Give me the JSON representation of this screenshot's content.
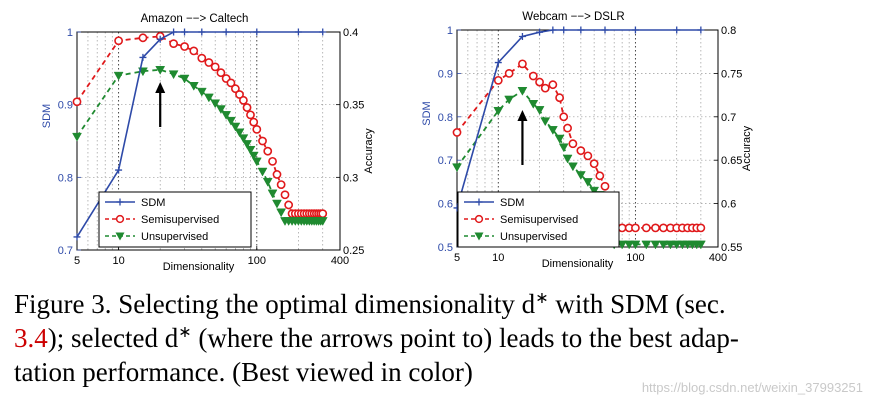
{
  "chart_data": [
    {
      "type": "line",
      "title": "Amazon −−> Caltech",
      "xlabel": "Dimensionality",
      "ylabel_left": "SDM",
      "ylabel_right": "Accuracy",
      "xscale": "log",
      "xlim": [
        5,
        400
      ],
      "x_ticks": [
        "5",
        "10",
        "100",
        "400"
      ],
      "ylim_left": [
        0.7,
        1.0
      ],
      "y_ticks_left": [
        "0.7",
        "0.8",
        "0.9",
        "1"
      ],
      "ylim_right": [
        0.25,
        0.4
      ],
      "y_ticks_right": [
        "0.25",
        "0.3",
        "0.35",
        "0.4"
      ],
      "grid": true,
      "legend_position": "bottom-left",
      "selected_x": 20,
      "series": [
        {
          "name": "SDM",
          "axis": "left",
          "color": "#2e4aa8",
          "marker": "plus",
          "x": [
            5,
            10,
            15,
            20,
            25,
            30,
            40,
            60,
            100,
            200,
            300
          ],
          "y": [
            0.718,
            0.81,
            0.965,
            0.99,
            1.0,
            1.0,
            1.0,
            1.0,
            1.0,
            1.0,
            1.0
          ]
        },
        {
          "name": "Semisupervised",
          "axis": "right",
          "color": "#e0191b",
          "marker": "circle",
          "x": [
            5,
            10,
            15,
            20,
            25,
            30,
            35,
            40,
            45,
            50,
            55,
            60,
            65,
            70,
            75,
            80,
            85,
            90,
            95,
            100,
            110,
            120,
            130,
            140,
            150,
            160,
            170,
            180,
            190,
            200,
            210,
            220,
            230,
            240,
            250,
            260,
            270,
            280,
            290,
            300
          ],
          "y": [
            0.352,
            0.394,
            0.396,
            0.397,
            0.392,
            0.39,
            0.387,
            0.382,
            0.379,
            0.376,
            0.372,
            0.368,
            0.365,
            0.361,
            0.357,
            0.353,
            0.348,
            0.343,
            0.338,
            0.333,
            0.325,
            0.318,
            0.311,
            0.302,
            0.295,
            0.288,
            0.281,
            0.275,
            0.275,
            0.275,
            0.275,
            0.275,
            0.275,
            0.275,
            0.275,
            0.275,
            0.275,
            0.275,
            0.275,
            0.275
          ]
        },
        {
          "name": "Unsupervised",
          "axis": "right",
          "color": "#1f8a30",
          "marker": "triangle-down",
          "x": [
            5,
            10,
            15,
            20,
            25,
            30,
            35,
            40,
            45,
            50,
            55,
            60,
            65,
            70,
            75,
            80,
            85,
            90,
            95,
            100,
            110,
            120,
            130,
            140,
            150,
            160,
            170,
            180,
            190,
            200,
            210,
            220,
            230,
            240,
            250,
            260,
            270,
            280,
            290,
            300
          ],
          "y": [
            0.328,
            0.37,
            0.373,
            0.374,
            0.371,
            0.368,
            0.363,
            0.359,
            0.355,
            0.351,
            0.347,
            0.343,
            0.339,
            0.335,
            0.331,
            0.327,
            0.323,
            0.319,
            0.315,
            0.311,
            0.304,
            0.297,
            0.289,
            0.282,
            0.276,
            0.27,
            0.27,
            0.27,
            0.27,
            0.27,
            0.27,
            0.27,
            0.27,
            0.27,
            0.27,
            0.27,
            0.27,
            0.27,
            0.27,
            0.27
          ]
        }
      ]
    },
    {
      "type": "line",
      "title": "Webcam −−> DSLR",
      "xlabel": "Dimensionality",
      "ylabel_left": "SDM",
      "ylabel_right": "Accuracy",
      "xscale": "log",
      "xlim": [
        5,
        400
      ],
      "x_ticks": [
        "5",
        "10",
        "100",
        "400"
      ],
      "ylim_left": [
        0.5,
        1.0
      ],
      "y_ticks_left": [
        "0.5",
        "0.6",
        "0.7",
        "0.8",
        "0.9",
        "1"
      ],
      "ylim_right": [
        0.55,
        0.8
      ],
      "y_ticks_right": [
        "0.55",
        "0.6",
        "0.65",
        "0.7",
        "0.75",
        "0.8"
      ],
      "grid": true,
      "legend_position": "bottom-left",
      "selected_x": 15,
      "series": [
        {
          "name": "SDM",
          "axis": "left",
          "color": "#2e4aa8",
          "marker": "plus",
          "x": [
            5,
            10,
            15,
            20,
            25,
            30,
            40,
            60,
            100,
            200,
            300
          ],
          "y": [
            0.59,
            0.925,
            0.985,
            0.995,
            1.0,
            1.0,
            1.0,
            1.0,
            1.0,
            1.0,
            1.0
          ]
        },
        {
          "name": "Semisupervised",
          "axis": "right",
          "color": "#e0191b",
          "marker": "circle",
          "x": [
            5,
            10,
            12,
            15,
            18,
            20,
            22,
            25,
            28,
            30,
            32,
            35,
            40,
            45,
            50,
            55,
            60,
            70,
            80,
            90,
            100,
            120,
            140,
            160,
            180,
            200,
            220,
            240,
            260,
            280,
            300
          ],
          "y": [
            0.682,
            0.742,
            0.75,
            0.761,
            0.747,
            0.74,
            0.733,
            0.737,
            0.722,
            0.7,
            0.687,
            0.669,
            0.661,
            0.655,
            0.646,
            0.632,
            0.62,
            0.572,
            0.572,
            0.572,
            0.572,
            0.572,
            0.572,
            0.572,
            0.572,
            0.572,
            0.572,
            0.572,
            0.572,
            0.572,
            0.572
          ]
        },
        {
          "name": "Unsupervised",
          "axis": "right",
          "color": "#1f8a30",
          "marker": "triangle-down",
          "x": [
            5,
            10,
            12,
            15,
            18,
            20,
            22,
            25,
            28,
            30,
            32,
            35,
            40,
            45,
            50,
            55,
            60,
            70,
            80,
            90,
            100,
            120,
            140,
            160,
            180,
            200,
            220,
            240,
            260,
            280,
            300
          ],
          "y": [
            0.642,
            0.707,
            0.72,
            0.73,
            0.715,
            0.708,
            0.695,
            0.685,
            0.675,
            0.665,
            0.652,
            0.643,
            0.633,
            0.625,
            0.615,
            0.61,
            0.6,
            0.553,
            0.553,
            0.553,
            0.553,
            0.553,
            0.553,
            0.553,
            0.553,
            0.553,
            0.553,
            0.553,
            0.553,
            0.553,
            0.553
          ]
        }
      ]
    }
  ],
  "caption": {
    "line1_prefix": "Figure 3. Selecting the optimal dimensionality d",
    "sup1": "∗",
    "line1_suffix": " with SDM (sec.",
    "line2_ref": "3.4",
    "line2_a": "); selected d",
    "sup2": "∗",
    "line2_b": " (where the arrows point to) leads to the best adap-",
    "line3": "tation performance. (Best viewed in color)"
  },
  "watermark": "https://blog.csdn.net/weixin_37993251"
}
